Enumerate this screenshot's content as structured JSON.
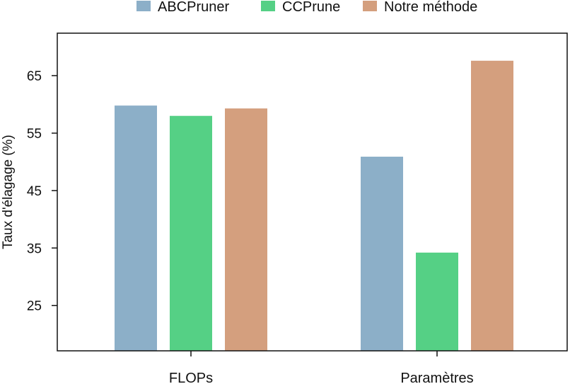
{
  "chart_data": {
    "type": "bar",
    "categories": [
      "FLOPs",
      "Paramètres"
    ],
    "series": [
      {
        "name": "ABCPruner",
        "color": "#8cafc8",
        "values": [
          59.8,
          50.9
        ]
      },
      {
        "name": "CCPrune",
        "color": "#55d085",
        "values": [
          58.0,
          34.2
        ]
      },
      {
        "name": "Notre méthode",
        "color": "#d49f7e",
        "values": [
          59.3,
          67.6
        ]
      }
    ],
    "ylabel": "Taux d'élagage (%)",
    "xlabel": "",
    "ylim": [
      17.1,
      72.4
    ],
    "yticks": [
      25,
      35,
      45,
      55,
      65
    ],
    "grid": false,
    "legend_position": "top-center"
  }
}
